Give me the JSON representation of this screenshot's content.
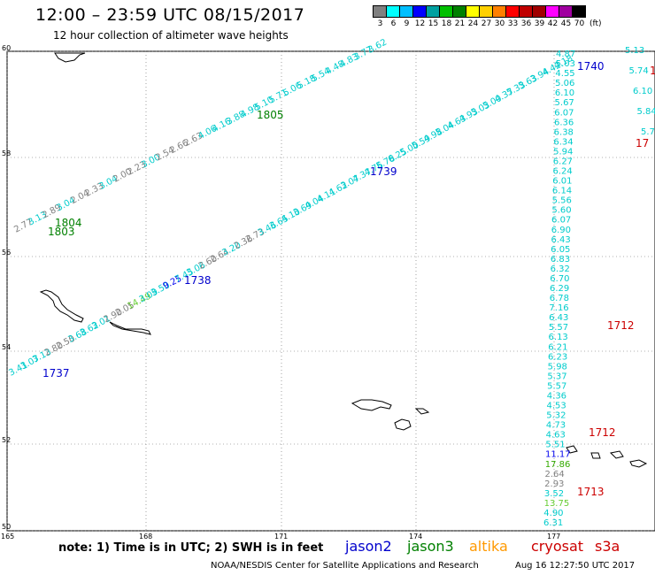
{
  "title": "12:00 – 23:59 UTC 08/15/2017",
  "subtitle": "12 hour collection of altimeter wave heights",
  "colorbar": {
    "colors": [
      "#808080",
      "#00ffff",
      "#00bfff",
      "#0000ff",
      "#00a0a0",
      "#00c000",
      "#008000",
      "#ffff00",
      "#ffd000",
      "#ff8000",
      "#ff0000",
      "#c00000",
      "#a00000",
      "#ff00ff",
      "#a000a0",
      "#000000"
    ],
    "labels": [
      "3",
      "6",
      "9",
      "12",
      "15",
      "18",
      "21",
      "24",
      "27",
      "30",
      "33",
      "36",
      "39",
      "42",
      "45",
      "70"
    ],
    "unit": "(ft)"
  },
  "axes": {
    "lat_ticks": [
      "60",
      "58",
      "56",
      "54",
      "52",
      "50"
    ],
    "lon_ticks": [
      "165",
      "168",
      "171",
      "174",
      "177"
    ]
  },
  "satellites": [
    {
      "name": "jason2",
      "color": "#0000cc"
    },
    {
      "name": "jason3",
      "color": "#008000"
    },
    {
      "name": "altika",
      "color": "#ff9900"
    },
    {
      "name": "cryosat",
      "color": "#cc0000"
    },
    {
      "name": "s3a",
      "color": "#cc0000"
    }
  ],
  "note": "note: 1) Time is in UTC; 2) SWH is in feet",
  "footer_left": "NOAA/NESDIS Center for Satellite Applications and Research",
  "footer_right": "Aug 16 12:27:50 UTC 2017",
  "time_labels": [
    {
      "text": "1805",
      "color": "#008000"
    },
    {
      "text": "1804",
      "color": "#008000"
    },
    {
      "text": "1803",
      "color": "#008000"
    },
    {
      "text": "1739",
      "color": "#0000cc"
    },
    {
      "text": "1738",
      "color": "#0000cc"
    },
    {
      "text": "1737",
      "color": "#0000cc"
    },
    {
      "text": "1740",
      "color": "#0000cc"
    },
    {
      "text": "1712",
      "color": "#cc0000"
    },
    {
      "text": "1712",
      "color": "#cc0000"
    },
    {
      "text": "1713",
      "color": "#cc0000"
    },
    {
      "text": "17",
      "color": "#cc0000"
    },
    {
      "text": "1",
      "color": "#cc0000"
    }
  ],
  "tracks": {
    "t1": [
      "2.77",
      "3.13",
      "2.89",
      "3.04",
      "2.04",
      "2.33",
      "3.04",
      "2.00",
      "2.23",
      "3.00",
      "2.54",
      "2.66",
      "2.63",
      "4.06",
      "4.16",
      "3.88",
      "4.98",
      "5.10",
      "5.71",
      "5.06",
      "5.18",
      "5.54",
      "4.48",
      "4.83",
      "3.77",
      "3.62"
    ],
    "t2": [
      "3.41",
      "3.07",
      "3.13",
      "2.80",
      "2.50",
      "3.68",
      "3.62",
      "3.01",
      "2.90",
      "2.05",
      "14.49",
      "3.09",
      "3.50",
      "9.25",
      "7.45",
      "3.06",
      "2.60",
      "2.64",
      "3.20",
      "2.36",
      "2.73",
      "3.46",
      "3.65",
      "4.10",
      "3.69",
      "4.04",
      "4.11",
      "4.62",
      "3.07",
      "4.37",
      "4.76",
      "5.78",
      "6.25",
      "5.00",
      "5.59",
      "4.98",
      "5.04",
      "4.63",
      "4.93",
      "5.03",
      "5.00",
      "4.37",
      "5.33",
      "5.63",
      "3.94",
      "4.42",
      "4.18"
    ],
    "t3": [
      "4.87",
      "5.03",
      "4.55",
      "5.06",
      "6.10",
      "5.67",
      "6.07",
      "6.36",
      "6.38",
      "6.34",
      "5.94",
      "6.27",
      "6.24",
      "6.01",
      "6.14",
      "5.56",
      "5.60",
      "6.07",
      "6.90",
      "6.43",
      "6.05",
      "6.83",
      "6.32",
      "6.70",
      "6.29",
      "6.78",
      "7.16",
      "6.43",
      "5.57",
      "6.13",
      "6.21",
      "6.23",
      "5.98",
      "5.37",
      "5.57",
      "4.36",
      "4.53",
      "5.32",
      "4.73",
      "4.63",
      "5.51",
      "11.17",
      "17.86",
      "2.64",
      "2.93",
      "3.52",
      "13.75",
      "4.90",
      "6.31"
    ],
    "t4": [
      "5.13",
      "5.74",
      "6.10",
      "5.84",
      "5.7"
    ]
  }
}
